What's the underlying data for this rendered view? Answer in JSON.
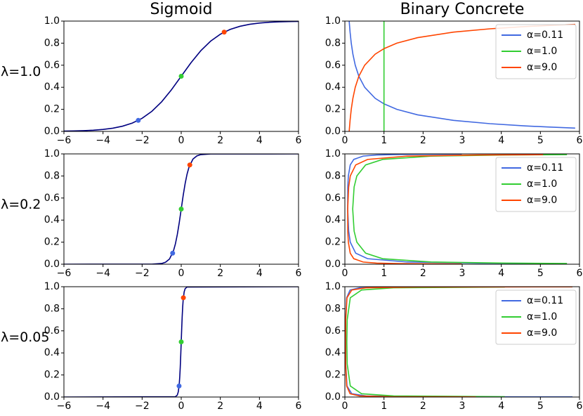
{
  "chart_data": [
    {
      "type": "line",
      "title": "Sigmoid",
      "ylabel": "λ=1.0",
      "xlim": [
        -6,
        6
      ],
      "ylim": [
        0,
        1
      ],
      "xticks": [
        {
          "value": -6,
          "label": "−6"
        },
        {
          "value": -4,
          "label": "−4"
        },
        {
          "value": -2,
          "label": "−2"
        },
        0,
        2,
        4,
        6
      ],
      "yticks": [
        {
          "value": 0,
          "label": "0.0"
        },
        0.2,
        0.4,
        0.6,
        0.8,
        {
          "value": 1,
          "label": "1.0"
        }
      ],
      "series": [
        {
          "color": "#000080",
          "x": [
            -6,
            -5.5,
            -5,
            -4.5,
            -4,
            -3.5,
            -3,
            -2.5,
            -2,
            -1.5,
            -1,
            -0.5,
            0,
            0.5,
            1,
            1.5,
            2,
            2.5,
            3,
            3.5,
            4,
            4.5,
            5,
            5.5,
            6
          ],
          "values": [
            0.0025,
            0.0041,
            0.0067,
            0.011,
            0.018,
            0.0293,
            0.0474,
            0.0759,
            0.1192,
            0.1824,
            0.2689,
            0.3775,
            0.5,
            0.6225,
            0.7311,
            0.8176,
            0.8808,
            0.9241,
            0.9526,
            0.9707,
            0.982,
            0.989,
            0.9933,
            0.9959,
            0.9975
          ]
        }
      ],
      "points": {
        "x": [
          -2.197,
          0,
          2.197
        ],
        "values": [
          0.1,
          0.5,
          0.9
        ],
        "colors": [
          "#4169e1",
          "#32cd32",
          "#ff4500"
        ]
      }
    },
    {
      "type": "line",
      "title": "Binary Concrete",
      "xlim": [
        0,
        6
      ],
      "ylim": [
        0,
        1
      ],
      "xticks": [
        0,
        1,
        2,
        3,
        4,
        5,
        6
      ],
      "yticks": [
        {
          "value": 0,
          "label": "0.0"
        },
        0.2,
        0.4,
        0.6,
        0.8,
        {
          "value": 1,
          "label": "1.0"
        }
      ],
      "legend": "upper right",
      "series": [
        {
          "name": "α=0.11",
          "color": "#4169e1",
          "x": [
            5.89,
            5.19,
            4.61,
            3.71,
            2.78,
            1.86,
            1.33,
            1.0,
            0.774,
            0.506,
            0.357,
            0.265,
            0.205,
            0.163,
            0.133,
            0.11
          ],
          "values": [
            0.03,
            0.04,
            0.05,
            0.07,
            0.1,
            0.15,
            0.2,
            0.25,
            0.3,
            0.4,
            0.5,
            0.6,
            0.7,
            0.8,
            0.9,
            1.0
          ]
        },
        {
          "name": "α=1.0",
          "color": "#32cd32",
          "x": [
            1,
            1
          ],
          "values": [
            0,
            1
          ]
        },
        {
          "name": "α=9.0",
          "color": "#ff4500",
          "x": [
            0.11,
            0.133,
            0.163,
            0.205,
            0.265,
            0.357,
            0.506,
            0.774,
            1.0,
            1.33,
            1.86,
            2.78,
            3.71,
            4.61,
            5.19,
            5.89
          ],
          "values": [
            0,
            0.1,
            0.2,
            0.3,
            0.4,
            0.5,
            0.6,
            0.7,
            0.75,
            0.8,
            0.85,
            0.9,
            0.93,
            0.95,
            0.96,
            0.97
          ]
        }
      ]
    },
    {
      "type": "line",
      "ylabel": "λ=0.2",
      "xlim": [
        -6,
        6
      ],
      "ylim": [
        0,
        1
      ],
      "xticks": [
        {
          "value": -6,
          "label": "−6"
        },
        {
          "value": -4,
          "label": "−4"
        },
        {
          "value": -2,
          "label": "−2"
        },
        0,
        2,
        4,
        6
      ],
      "yticks": [
        {
          "value": 0,
          "label": "0.0"
        },
        0.2,
        0.4,
        0.6,
        0.8,
        {
          "value": 1,
          "label": "1.0"
        }
      ],
      "series": [
        {
          "color": "#000080",
          "x": [
            -6,
            -1.5,
            -1,
            -0.8,
            -0.6,
            -0.4,
            -0.3,
            -0.2,
            -0.1,
            0,
            0.1,
            0.2,
            0.3,
            0.4,
            0.6,
            0.8,
            1,
            1.5,
            6
          ],
          "values": [
            0,
            0.00055,
            0.0067,
            0.018,
            0.0474,
            0.1192,
            0.1824,
            0.2689,
            0.3775,
            0.5,
            0.6225,
            0.7311,
            0.8176,
            0.8808,
            0.9526,
            0.982,
            0.9933,
            0.99945,
            1
          ]
        }
      ],
      "points": {
        "x": [
          -0.439,
          0,
          0.439
        ],
        "values": [
          0.1,
          0.5,
          0.9
        ],
        "colors": [
          "#4169e1",
          "#32cd32",
          "#ff4500"
        ]
      }
    },
    {
      "type": "line",
      "xlim": [
        0,
        6
      ],
      "ylim": [
        0,
        1
      ],
      "xticks": [
        0,
        1,
        2,
        3,
        4,
        5,
        6
      ],
      "yticks": [
        {
          "value": 0,
          "label": "0.0"
        },
        0.2,
        0.4,
        0.6,
        0.8,
        {
          "value": 1,
          "label": "1.0"
        }
      ],
      "legend": "upper right",
      "series": [
        {
          "name": "α=0.11",
          "color": "#4169e1",
          "x": [
            5.07,
            3.42,
            1.59,
            0.581,
            0.277,
            0.138,
            0.0971,
            0.0714,
            0.0741,
            0.0888,
            0.137,
            0.228,
            0.467,
            0.813,
            1.42,
            2.99
          ],
          "values": [
            0.007,
            0.01,
            0.02,
            0.05,
            0.1,
            0.2,
            0.3,
            0.5,
            0.7,
            0.8,
            0.9,
            0.95,
            0.98,
            0.99,
            0.995,
            0.998
          ]
        },
        {
          "name": "α=1.0",
          "color": "#32cd32",
          "x": [
            5.68,
            4.12,
            2.2,
            0.966,
            0.53,
            0.306,
            0.236,
            0.2,
            0.236,
            0.306,
            0.53,
            0.966,
            2.2,
            4.12,
            5.68
          ],
          "values": [
            0.007,
            0.01,
            0.02,
            0.05,
            0.1,
            0.2,
            0.3,
            0.5,
            0.7,
            0.8,
            0.9,
            0.95,
            0.98,
            0.99,
            0.993
          ]
        },
        {
          "name": "α=9.0",
          "color": "#ff4500",
          "x": [
            2.99,
            1.42,
            0.813,
            0.467,
            0.228,
            0.137,
            0.0888,
            0.0741,
            0.0714,
            0.0971,
            0.138,
            0.277,
            0.581,
            1.59,
            3.42,
            5.07
          ],
          "values": [
            0.002,
            0.005,
            0.01,
            0.02,
            0.05,
            0.1,
            0.2,
            0.3,
            0.5,
            0.7,
            0.8,
            0.9,
            0.95,
            0.98,
            0.99,
            0.993
          ]
        }
      ]
    },
    {
      "type": "line",
      "ylabel": "λ=0.05",
      "xlim": [
        -6,
        6
      ],
      "ylim": [
        0,
        1
      ],
      "xticks": [
        {
          "value": -6,
          "label": "−6"
        },
        {
          "value": -4,
          "label": "−4"
        },
        {
          "value": -2,
          "label": "−2"
        },
        0,
        2,
        4,
        6
      ],
      "yticks": [
        {
          "value": 0,
          "label": "0.0"
        },
        0.2,
        0.4,
        0.6,
        0.8,
        {
          "value": 1,
          "label": "1.0"
        }
      ],
      "series": [
        {
          "color": "#000080",
          "x": [
            -6,
            -0.3,
            -0.2,
            -0.15,
            -0.1,
            -0.075,
            -0.05,
            -0.025,
            0,
            0.025,
            0.05,
            0.075,
            0.1,
            0.15,
            0.2,
            0.3,
            6
          ],
          "values": [
            0,
            0.0025,
            0.018,
            0.0474,
            0.1192,
            0.1824,
            0.2689,
            0.3775,
            0.5,
            0.6225,
            0.7311,
            0.8176,
            0.8808,
            0.9526,
            0.982,
            0.9975,
            1
          ]
        }
      ],
      "points": {
        "x": [
          -0.11,
          0,
          0.11
        ],
        "values": [
          0.1,
          0.5,
          0.9
        ],
        "colors": [
          "#4169e1",
          "#32cd32",
          "#ff4500"
        ]
      }
    },
    {
      "type": "line",
      "xlim": [
        0,
        6
      ],
      "ylim": [
        0,
        1
      ],
      "xticks": [
        0,
        1,
        2,
        3,
        4,
        5,
        6
      ],
      "yticks": [
        {
          "value": 0,
          "label": "0.0"
        },
        0.2,
        0.4,
        0.6,
        0.8,
        {
          "value": 1,
          "label": "1.0"
        }
      ],
      "legend": "upper right",
      "series": [
        {
          "name": "α=0.11",
          "color": "#4169e1",
          "x": [
            5.82,
            1.87,
            0.539,
            0.176,
            0.0541,
            0.022,
            0.0179,
            0.0205,
            0.0454,
            0.133,
            0.373,
            1.174,
            3.35
          ],
          "values": [
            0.001,
            0.003,
            0.01,
            0.03,
            0.1,
            0.3,
            0.5,
            0.7,
            0.9,
            0.97,
            0.99,
            0.997,
            0.999
          ]
        },
        {
          "name": "α=1.0",
          "color": "#32cd32",
          "x": [
            4.09,
            1.246,
            0.426,
            0.1385,
            0.0595,
            0.05,
            0.0595,
            0.1385,
            0.426,
            1.246,
            4.09
          ],
          "values": [
            0.003,
            0.01,
            0.03,
            0.1,
            0.3,
            0.5,
            0.7,
            0.9,
            0.97,
            0.99,
            0.997
          ]
        },
        {
          "name": "α=9.0",
          "color": "#ff4500",
          "x": [
            3.35,
            1.174,
            0.373,
            0.133,
            0.0454,
            0.0205,
            0.0179,
            0.022,
            0.0541,
            0.176,
            0.539,
            1.87,
            5.82
          ],
          "values": [
            0.001,
            0.003,
            0.01,
            0.03,
            0.1,
            0.3,
            0.5,
            0.7,
            0.9,
            0.97,
            0.99,
            0.997,
            0.999
          ]
        }
      ]
    }
  ]
}
